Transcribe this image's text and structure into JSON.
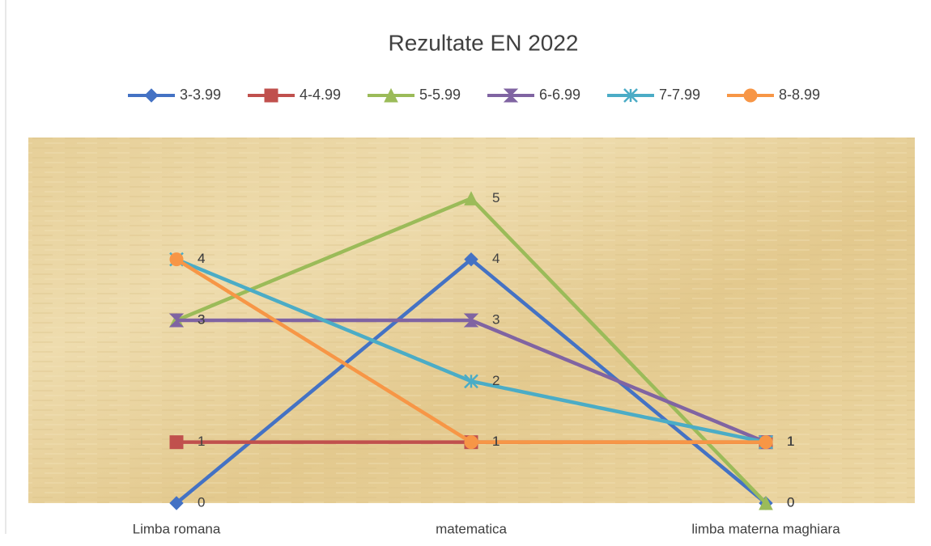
{
  "chart_data": {
    "type": "line",
    "title": "Rezultate EN  2022",
    "categories": [
      "Limba romana",
      "matematica",
      "limba materna maghiara"
    ],
    "series": [
      {
        "name": "3-3.99",
        "color": "#4472c4",
        "marker": "diamond",
        "values": [
          0,
          4,
          0
        ]
      },
      {
        "name": "4-4.99",
        "color": "#c0504d",
        "marker": "square",
        "values": [
          1,
          1,
          1
        ]
      },
      {
        "name": "5-5.99",
        "color": "#9bbb59",
        "marker": "triangle",
        "values": [
          3,
          5,
          0
        ]
      },
      {
        "name": "6-6.99",
        "color": "#8064a2",
        "marker": "hourglass",
        "values": [
          3,
          3,
          1
        ]
      },
      {
        "name": "7-7.99",
        "color": "#4bacc6",
        "marker": "star",
        "values": [
          4,
          2,
          1
        ]
      },
      {
        "name": "8-8.99",
        "color": "#f79646",
        "marker": "circle",
        "values": [
          4,
          1,
          1
        ]
      }
    ],
    "ylim": [
      0,
      6
    ],
    "legend": "top",
    "data_labels": true
  }
}
